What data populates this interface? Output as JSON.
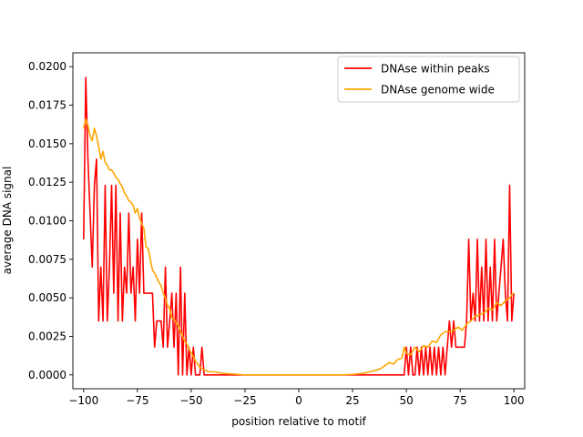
{
  "chart_data": {
    "type": "line",
    "title": "",
    "xlabel": "position relative to motif",
    "ylabel": "average DNA signal",
    "xlim": [
      -105,
      105
    ],
    "ylim": [
      -0.0009,
      0.0209
    ],
    "xticks": [
      -100,
      -75,
      -50,
      -25,
      0,
      25,
      50,
      75,
      100
    ],
    "xtick_labels": [
      "−100",
      "−75",
      "−50",
      "−25",
      "0",
      "25",
      "50",
      "75",
      "100"
    ],
    "yticks": [
      0.0,
      0.0025,
      0.005,
      0.0075,
      0.01,
      0.0125,
      0.015,
      0.0175,
      0.02
    ],
    "ytick_labels": [
      "0.0000",
      "0.0025",
      "0.0050",
      "0.0075",
      "0.0100",
      "0.0125",
      "0.0150",
      "0.0175",
      "0.0200"
    ],
    "grid": false,
    "legend_position": "top-right",
    "series": [
      {
        "name": "DNAse within peaks",
        "color": "#ff0000",
        "points": [
          [
            -100,
            0.0088
          ],
          [
            -99,
            0.0193
          ],
          [
            -98,
            0.014
          ],
          [
            -97,
            0.0105
          ],
          [
            -96,
            0.007
          ],
          [
            -95,
            0.0123
          ],
          [
            -94,
            0.014
          ],
          [
            -93,
            0.0035
          ],
          [
            -92,
            0.007
          ],
          [
            -91,
            0.0035
          ],
          [
            -90,
            0.0123
          ],
          [
            -89,
            0.0035
          ],
          [
            -88,
            0.007
          ],
          [
            -87,
            0.0123
          ],
          [
            -86,
            0.0053
          ],
          [
            -85,
            0.0123
          ],
          [
            -84,
            0.0035
          ],
          [
            -83,
            0.0105
          ],
          [
            -82,
            0.0035
          ],
          [
            -81,
            0.007
          ],
          [
            -80,
            0.0053
          ],
          [
            -79,
            0.0105
          ],
          [
            -78,
            0.0053
          ],
          [
            -77,
            0.007
          ],
          [
            -76,
            0.0035
          ],
          [
            -75,
            0.0088
          ],
          [
            -74,
            0.0053
          ],
          [
            -73,
            0.0105
          ],
          [
            -72,
            0.0053
          ],
          [
            -71,
            0.0053
          ],
          [
            -70,
            0.0053
          ],
          [
            -69,
            0.0053
          ],
          [
            -68,
            0.0053
          ],
          [
            -67,
            0.0018
          ],
          [
            -66,
            0.0035
          ],
          [
            -65,
            0.0035
          ],
          [
            -64,
            0.0035
          ],
          [
            -63,
            0.0018
          ],
          [
            -62,
            0.007
          ],
          [
            -61,
            0.0018
          ],
          [
            -60,
            0.0035
          ],
          [
            -59,
            0.0053
          ],
          [
            -58,
            0.0018
          ],
          [
            -57,
            0.0053
          ],
          [
            -56,
            0.0
          ],
          [
            -55,
            0.007
          ],
          [
            -54,
            0.0
          ],
          [
            -53,
            0.0053
          ],
          [
            -52,
            0.0
          ],
          [
            -51,
            0.0018
          ],
          [
            -50,
            0.0
          ],
          [
            -49,
            0.0018
          ],
          [
            -48,
            0.0
          ],
          [
            -47,
            0.0
          ],
          [
            -46,
            0.0
          ],
          [
            -45,
            0.0018
          ],
          [
            -44,
            0.0
          ],
          [
            -43,
            0.0
          ],
          [
            -42,
            0.0
          ],
          [
            -41,
            0.0
          ],
          [
            -30,
            0.0
          ],
          [
            -20,
            0.0
          ],
          [
            -10,
            0.0
          ],
          [
            0,
            0.0
          ],
          [
            10,
            0.0
          ],
          [
            20,
            0.0
          ],
          [
            30,
            0.0
          ],
          [
            40,
            0.0
          ],
          [
            45,
            0.0
          ],
          [
            46,
            0.0
          ],
          [
            47,
            0.0
          ],
          [
            48,
            0.0
          ],
          [
            49,
            0.0
          ],
          [
            50,
            0.0018
          ],
          [
            51,
            0.0
          ],
          [
            52,
            0.0018
          ],
          [
            53,
            0.0
          ],
          [
            54,
            0.0
          ],
          [
            55,
            0.0018
          ],
          [
            56,
            0.0
          ],
          [
            57,
            0.0018
          ],
          [
            58,
            0.0
          ],
          [
            59,
            0.0018
          ],
          [
            60,
            0.0
          ],
          [
            61,
            0.0018
          ],
          [
            62,
            0.0
          ],
          [
            63,
            0.0018
          ],
          [
            64,
            0.0
          ],
          [
            65,
            0.0018
          ],
          [
            66,
            0.0
          ],
          [
            67,
            0.0018
          ],
          [
            68,
            0.0
          ],
          [
            69,
            0.0018
          ],
          [
            70,
            0.0035
          ],
          [
            71,
            0.0018
          ],
          [
            72,
            0.0035
          ],
          [
            73,
            0.0018
          ],
          [
            74,
            0.0018
          ],
          [
            75,
            0.0018
          ],
          [
            76,
            0.0018
          ],
          [
            77,
            0.0018
          ],
          [
            78,
            0.0035
          ],
          [
            79,
            0.0088
          ],
          [
            80,
            0.0035
          ],
          [
            81,
            0.0053
          ],
          [
            82,
            0.0035
          ],
          [
            83,
            0.0088
          ],
          [
            84,
            0.0035
          ],
          [
            85,
            0.007
          ],
          [
            86,
            0.0035
          ],
          [
            87,
            0.0088
          ],
          [
            88,
            0.0035
          ],
          [
            89,
            0.007
          ],
          [
            90,
            0.0035
          ],
          [
            91,
            0.0088
          ],
          [
            92,
            0.0035
          ],
          [
            93,
            0.0053
          ],
          [
            94,
            0.007
          ],
          [
            95,
            0.0088
          ],
          [
            96,
            0.0053
          ],
          [
            97,
            0.0035
          ],
          [
            98,
            0.0123
          ],
          [
            99,
            0.0035
          ],
          [
            100,
            0.0053
          ]
        ]
      },
      {
        "name": "DNAse genome wide",
        "color": "#ffa500",
        "points": [
          [
            -100,
            0.016
          ],
          [
            -99,
            0.0166
          ],
          [
            -98,
            0.0162
          ],
          [
            -97,
            0.0155
          ],
          [
            -96,
            0.0152
          ],
          [
            -95,
            0.016
          ],
          [
            -94,
            0.0155
          ],
          [
            -93,
            0.0148
          ],
          [
            -92,
            0.014
          ],
          [
            -91,
            0.0145
          ],
          [
            -90,
            0.0138
          ],
          [
            -89,
            0.0136
          ],
          [
            -88,
            0.0133
          ],
          [
            -87,
            0.0133
          ],
          [
            -86,
            0.0131
          ],
          [
            -85,
            0.0128
          ],
          [
            -84,
            0.0127
          ],
          [
            -83,
            0.0124
          ],
          [
            -82,
            0.0122
          ],
          [
            -81,
            0.0118
          ],
          [
            -80,
            0.0116
          ],
          [
            -79,
            0.0113
          ],
          [
            -78,
            0.0112
          ],
          [
            -77,
            0.011
          ],
          [
            -76,
            0.0105
          ],
          [
            -75,
            0.0108
          ],
          [
            -74,
            0.0102
          ],
          [
            -73,
            0.0098
          ],
          [
            -72,
            0.0095
          ],
          [
            -71,
            0.0083
          ],
          [
            -70,
            0.0082
          ],
          [
            -69,
            0.0075
          ],
          [
            -68,
            0.0068
          ],
          [
            -67,
            0.0066
          ],
          [
            -66,
            0.0063
          ],
          [
            -65,
            0.006
          ],
          [
            -64,
            0.0058
          ],
          [
            -63,
            0.0053
          ],
          [
            -62,
            0.005
          ],
          [
            -61,
            0.0045
          ],
          [
            -60,
            0.0043
          ],
          [
            -59,
            0.0037
          ],
          [
            -58,
            0.0036
          ],
          [
            -57,
            0.0034
          ],
          [
            -56,
            0.0032
          ],
          [
            -55,
            0.0028
          ],
          [
            -54,
            0.0025
          ],
          [
            -53,
            0.0022
          ],
          [
            -52,
            0.002
          ],
          [
            -51,
            0.0017
          ],
          [
            -50,
            0.0014
          ],
          [
            -49,
            0.0012
          ],
          [
            -48,
            0.0009
          ],
          [
            -47,
            0.0007
          ],
          [
            -46,
            0.0005
          ],
          [
            -45,
            0.0004
          ],
          [
            -44,
            0.0003
          ],
          [
            -43,
            0.0003
          ],
          [
            -42,
            0.0002
          ],
          [
            -40,
            0.0002
          ],
          [
            -35,
            0.0001
          ],
          [
            -30,
            5e-05
          ],
          [
            -25,
            0.0
          ],
          [
            -20,
            0.0
          ],
          [
            -10,
            0.0
          ],
          [
            0,
            0.0
          ],
          [
            10,
            0.0
          ],
          [
            20,
            0.0
          ],
          [
            25,
            3e-05
          ],
          [
            30,
            0.0001
          ],
          [
            33,
            0.0002
          ],
          [
            36,
            0.0003
          ],
          [
            38,
            0.0004
          ],
          [
            40,
            0.0006
          ],
          [
            42,
            0.0008
          ],
          [
            44,
            0.0007
          ],
          [
            46,
            0.001
          ],
          [
            48,
            0.0011
          ],
          [
            49,
            0.0018
          ],
          [
            50,
            0.0014
          ],
          [
            52,
            0.0013
          ],
          [
            54,
            0.0018
          ],
          [
            56,
            0.0015
          ],
          [
            58,
            0.0019
          ],
          [
            60,
            0.0018
          ],
          [
            62,
            0.0022
          ],
          [
            64,
            0.0021
          ],
          [
            66,
            0.0026
          ],
          [
            68,
            0.0028
          ],
          [
            70,
            0.0028
          ],
          [
            72,
            0.0029
          ],
          [
            74,
            0.0031
          ],
          [
            76,
            0.0029
          ],
          [
            78,
            0.0033
          ],
          [
            80,
            0.0035
          ],
          [
            82,
            0.0038
          ],
          [
            84,
            0.0039
          ],
          [
            86,
            0.004
          ],
          [
            88,
            0.0043
          ],
          [
            90,
            0.0042
          ],
          [
            92,
            0.0047
          ],
          [
            94,
            0.0045
          ],
          [
            96,
            0.0048
          ],
          [
            98,
            0.005
          ],
          [
            99,
            0.0052
          ],
          [
            100,
            0.0053
          ]
        ]
      }
    ]
  }
}
